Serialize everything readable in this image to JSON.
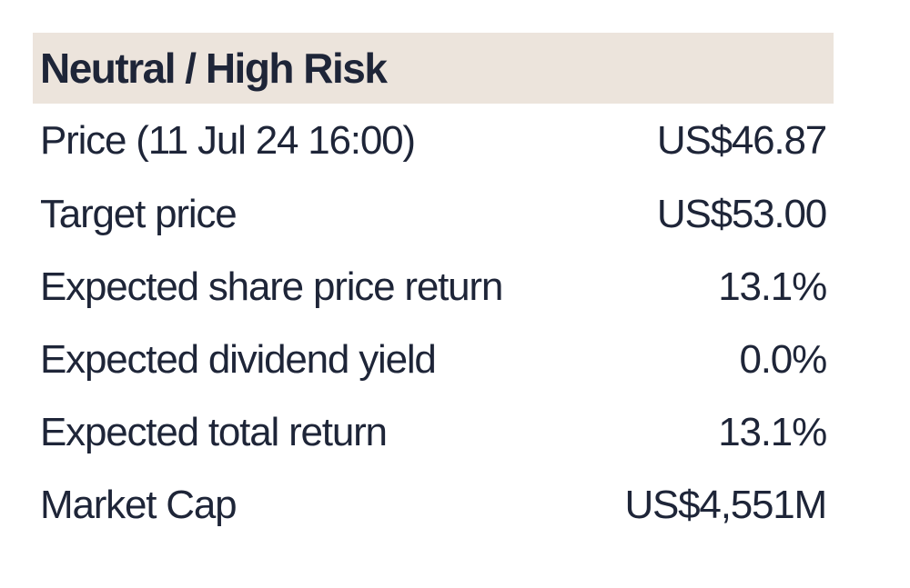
{
  "header": {
    "title": "Neutral / High Risk"
  },
  "rows": [
    {
      "label": "Price (11 Jul 24 16:00)",
      "value": "US$46.87"
    },
    {
      "label": "Target price",
      "value": "US$53.00"
    },
    {
      "label": "Expected share price return",
      "value": "13.1%"
    },
    {
      "label": "Expected dividend yield",
      "value": "0.0%"
    },
    {
      "label": "Expected total return",
      "value": "13.1%"
    },
    {
      "label": "Market Cap",
      "value": "US$4,551M"
    }
  ],
  "colors": {
    "header_background": "#ece4dc",
    "text": "#1e2538"
  }
}
